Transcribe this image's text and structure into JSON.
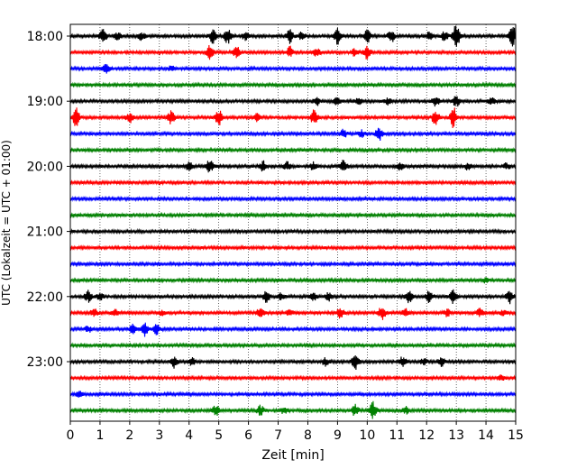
{
  "chart_data": {
    "type": "line",
    "subtype": "helicorder-seismogram",
    "xlabel": "Zeit  [min]",
    "ylabel": "UTC (Lokalzeit = UTC + 01:00)",
    "xlim": [
      0,
      15
    ],
    "x_ticks": [
      "0",
      "1",
      "2",
      "3",
      "4",
      "5",
      "6",
      "7",
      "8",
      "9",
      "10",
      "11",
      "12",
      "13",
      "14",
      "15"
    ],
    "y_tick_labels": [
      "18:00",
      "19:00",
      "20:00",
      "21:00",
      "22:00",
      "23:00"
    ],
    "trace_interval_min": 15,
    "trace_count": 24,
    "x_grid": "dotted vertical at each minute",
    "color_cycle": [
      "#000000",
      "#ff0000",
      "#0000ff",
      "#008000"
    ],
    "traces": [
      {
        "start": "18:00",
        "color": "#000000",
        "events": [
          [
            1.1,
            0.9
          ],
          [
            1.6,
            0.5
          ],
          [
            2.4,
            0.5
          ],
          [
            4.8,
            0.8
          ],
          [
            5.3,
            0.9
          ],
          [
            5.9,
            0.5
          ],
          [
            7.4,
            0.8
          ],
          [
            7.8,
            0.6
          ],
          [
            9.0,
            1.0
          ],
          [
            10.0,
            0.8
          ],
          [
            10.8,
            0.8
          ],
          [
            12.1,
            0.5
          ],
          [
            12.6,
            0.5
          ],
          [
            13.0,
            1.4
          ],
          [
            14.9,
            1.2
          ]
        ]
      },
      {
        "start": "18:15",
        "color": "#ff0000",
        "events": [
          [
            4.7,
            0.8
          ],
          [
            5.6,
            0.7
          ],
          [
            7.4,
            0.7
          ],
          [
            8.3,
            0.5
          ],
          [
            9.6,
            0.5
          ],
          [
            10.0,
            0.8
          ]
        ]
      },
      {
        "start": "18:30",
        "color": "#0000ff",
        "events": [
          [
            1.2,
            0.6
          ],
          [
            3.4,
            0.3
          ]
        ]
      },
      {
        "start": "18:45",
        "color": "#008000",
        "events": []
      },
      {
        "start": "19:00",
        "color": "#000000",
        "events": [
          [
            8.3,
            0.5
          ],
          [
            9.0,
            0.5
          ],
          [
            9.7,
            0.4
          ],
          [
            10.7,
            0.4
          ],
          [
            12.3,
            0.6
          ],
          [
            13.0,
            0.6
          ],
          [
            14.2,
            0.5
          ]
        ]
      },
      {
        "start": "19:15",
        "color": "#ff0000",
        "events": [
          [
            0.2,
            1.1
          ],
          [
            2.0,
            0.6
          ],
          [
            3.4,
            0.8
          ],
          [
            5.0,
            0.9
          ],
          [
            6.3,
            0.5
          ],
          [
            8.2,
            0.9
          ],
          [
            12.3,
            0.9
          ],
          [
            12.9,
            1.2
          ]
        ]
      },
      {
        "start": "19:30",
        "color": "#0000ff",
        "events": [
          [
            9.2,
            0.5
          ],
          [
            9.8,
            0.4
          ],
          [
            10.4,
            0.8
          ]
        ]
      },
      {
        "start": "19:45",
        "color": "#008000",
        "events": []
      },
      {
        "start": "20:00",
        "color": "#000000",
        "events": [
          [
            4.0,
            0.5
          ],
          [
            4.7,
            0.8
          ],
          [
            6.5,
            0.6
          ],
          [
            7.3,
            0.5
          ],
          [
            8.2,
            0.5
          ],
          [
            9.2,
            0.8
          ],
          [
            11.1,
            0.4
          ],
          [
            13.4,
            0.4
          ],
          [
            14.7,
            0.4
          ]
        ]
      },
      {
        "start": "20:15",
        "color": "#ff0000",
        "events": []
      },
      {
        "start": "20:30",
        "color": "#0000ff",
        "events": []
      },
      {
        "start": "20:45",
        "color": "#008000",
        "events": []
      },
      {
        "start": "21:00",
        "color": "#000000",
        "events": []
      },
      {
        "start": "21:15",
        "color": "#ff0000",
        "events": []
      },
      {
        "start": "21:30",
        "color": "#0000ff",
        "events": []
      },
      {
        "start": "21:45",
        "color": "#008000",
        "events": [
          [
            14.0,
            0.3
          ]
        ]
      },
      {
        "start": "22:00",
        "color": "#000000",
        "events": [
          [
            0.6,
            0.7
          ],
          [
            1.0,
            0.4
          ],
          [
            6.6,
            0.8
          ],
          [
            7.1,
            0.4
          ],
          [
            8.2,
            0.4
          ],
          [
            8.7,
            0.5
          ],
          [
            11.4,
            0.7
          ],
          [
            12.1,
            0.7
          ],
          [
            12.9,
            0.8
          ],
          [
            14.8,
            0.8
          ]
        ]
      },
      {
        "start": "22:15",
        "color": "#ff0000",
        "events": [
          [
            0.8,
            0.5
          ],
          [
            1.5,
            0.4
          ],
          [
            3.1,
            0.3
          ],
          [
            6.4,
            0.6
          ],
          [
            7.4,
            0.4
          ],
          [
            9.1,
            0.6
          ],
          [
            10.5,
            0.8
          ],
          [
            11.3,
            0.5
          ],
          [
            12.7,
            0.4
          ],
          [
            13.8,
            0.5
          ],
          [
            14.6,
            0.4
          ]
        ]
      },
      {
        "start": "22:30",
        "color": "#0000ff",
        "events": [
          [
            0.6,
            0.4
          ],
          [
            2.1,
            0.5
          ],
          [
            2.5,
            0.8
          ],
          [
            2.9,
            0.6
          ]
        ]
      },
      {
        "start": "22:45",
        "color": "#008000",
        "events": []
      },
      {
        "start": "23:00",
        "color": "#000000",
        "events": [
          [
            3.5,
            0.7
          ],
          [
            4.1,
            0.4
          ],
          [
            8.6,
            0.5
          ],
          [
            9.6,
            0.9
          ],
          [
            11.2,
            0.6
          ],
          [
            11.9,
            0.4
          ],
          [
            12.5,
            0.5
          ]
        ]
      },
      {
        "start": "23:15",
        "color": "#ff0000",
        "events": [
          [
            14.5,
            0.3
          ]
        ]
      },
      {
        "start": "23:30",
        "color": "#0000ff",
        "events": [
          [
            0.3,
            0.3
          ]
        ]
      },
      {
        "start": "23:45",
        "color": "#008000",
        "events": [
          [
            4.9,
            0.6
          ],
          [
            6.4,
            0.6
          ],
          [
            7.2,
            0.4
          ],
          [
            9.6,
            0.7
          ],
          [
            10.2,
            1.0
          ],
          [
            11.3,
            0.4
          ]
        ]
      }
    ]
  }
}
